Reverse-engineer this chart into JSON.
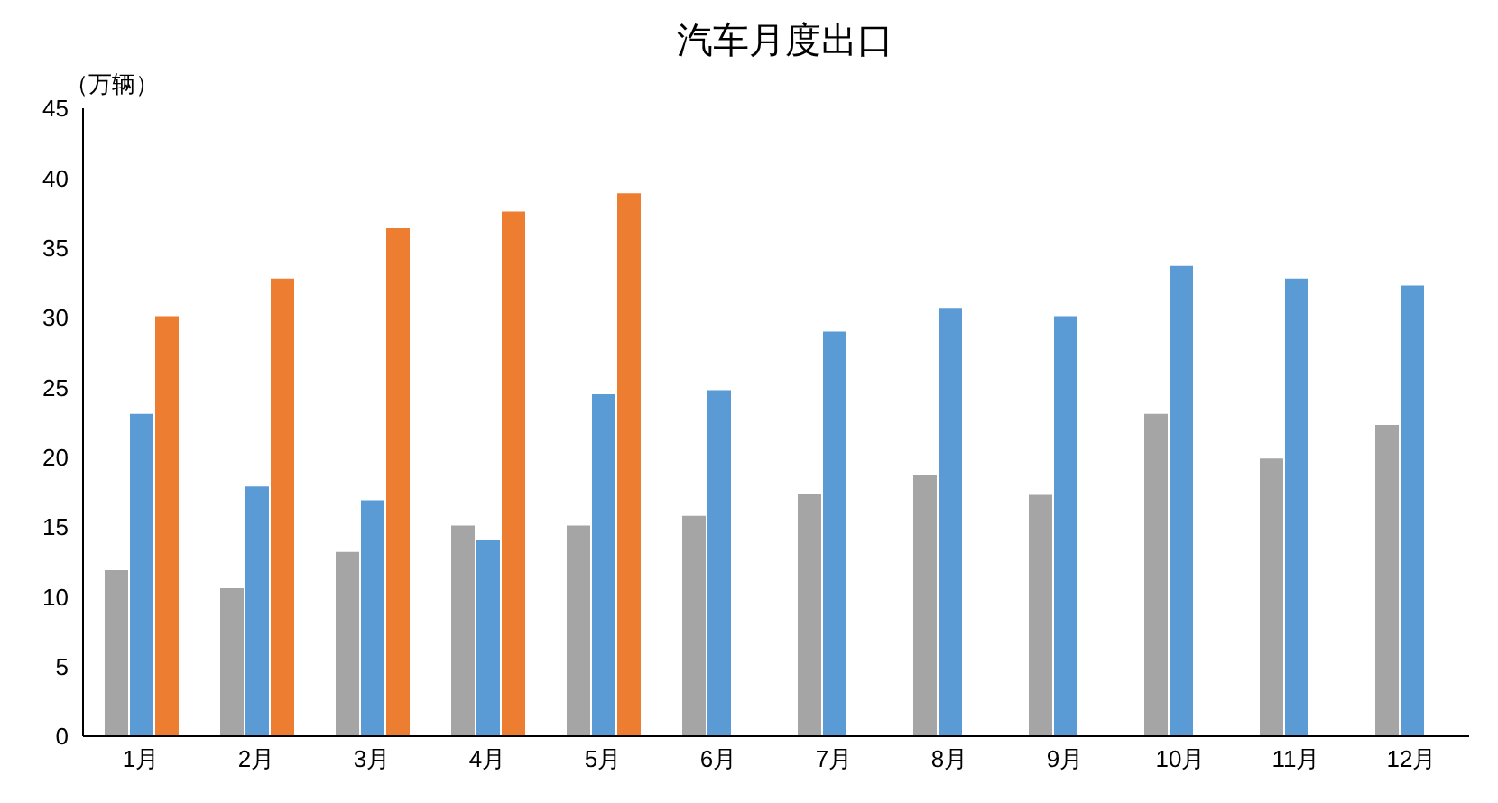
{
  "chart_data": {
    "type": "bar",
    "title": "汽车月度出口",
    "ylabel": "（万辆）",
    "categories": [
      "1月",
      "2月",
      "3月",
      "4月",
      "5月",
      "6月",
      "7月",
      "8月",
      "9月",
      "10月",
      "11月",
      "12月"
    ],
    "series": [
      {
        "color": "#a5a5a5",
        "values": [
          11.9,
          10.6,
          13.2,
          15.1,
          15.1,
          15.8,
          17.4,
          18.7,
          17.3,
          23.1,
          19.9,
          22.3
        ]
      },
      {
        "color": "#5b9bd5",
        "values": [
          23.1,
          17.9,
          16.9,
          14.1,
          24.5,
          24.8,
          29.0,
          30.7,
          30.1,
          33.7,
          32.8,
          32.3
        ]
      },
      {
        "color": "#ed7d31",
        "values": [
          30.1,
          32.8,
          36.4,
          37.6,
          38.9,
          null,
          null,
          null,
          null,
          null,
          null,
          null
        ]
      }
    ],
    "ylim": [
      0,
      45
    ],
    "yticks": [
      0,
      5,
      10,
      15,
      20,
      25,
      30,
      35,
      40,
      45
    ],
    "grid": false,
    "legend": false
  }
}
